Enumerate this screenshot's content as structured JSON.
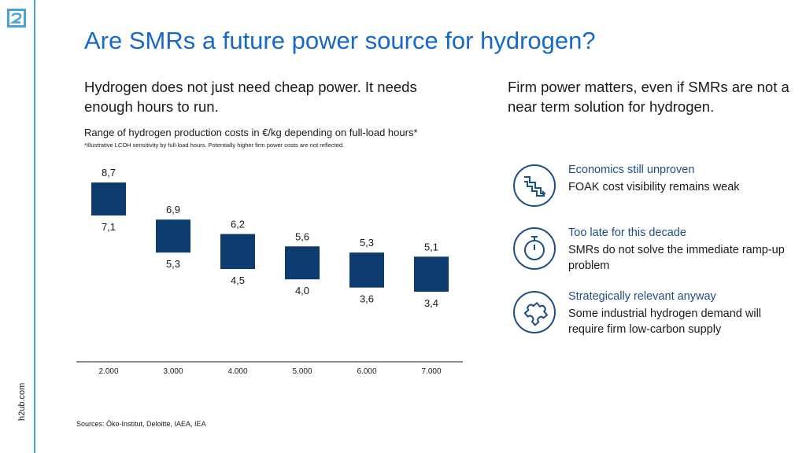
{
  "brand": {
    "logo_text": "h2",
    "site": "h2ub.com",
    "accent_color": "#4aa3d8",
    "title_color": "#1769c8",
    "bar_color": "#0d3b6e"
  },
  "title": "Are SMRs a future power source for hydrogen?",
  "left_subtitle": "Hydrogen does not just need cheap power. It needs enough hours to run.",
  "right_subtitle": "Firm power matters, even if SMRs are not a near term solution for hydrogen.",
  "chart_title": "Range of hydrogen production costs in €/kg depending on full-load hours*",
  "chart_note": "*Illustrative LCOH sensitivity by full-load hours. Potentially higher firm power costs are not reflected.",
  "sources": "Sources: Öko-Institut, Deloitte, IAEA, IEA",
  "chart_data": {
    "type": "bar",
    "subtype": "floating-range",
    "title": "Range of hydrogen production costs in €/kg depending on full-load hours*",
    "xlabel": "",
    "ylabel": "",
    "categories": [
      "2.000",
      "3.000",
      "4.000",
      "5.000",
      "6.000",
      "7.000"
    ],
    "series": [
      {
        "name": "high",
        "values": [
          8.7,
          6.9,
          6.2,
          5.6,
          5.3,
          5.1
        ],
        "labels": [
          "8,7",
          "6,9",
          "6,2",
          "5,6",
          "5,3",
          "5,1"
        ]
      },
      {
        "name": "low",
        "values": [
          7.1,
          5.3,
          4.5,
          4.0,
          3.6,
          3.4
        ],
        "labels": [
          "7,1",
          "5,3",
          "4,5",
          "4,0",
          "3,6",
          "3,4"
        ]
      }
    ],
    "ylim": [
      0,
      9.4
    ],
    "grid": false,
    "legend": "none"
  },
  "points": [
    {
      "icon": "declining-steps-icon",
      "heading": "Economics still unproven",
      "body": "FOAK cost visibility remains weak"
    },
    {
      "icon": "stopwatch-icon",
      "heading": "Too late for this decade",
      "body": "SMRs do not solve the immediate ramp-up problem"
    },
    {
      "icon": "puzzle-icon",
      "heading": "Strategically relevant anyway",
      "body": "Some industrial hydrogen demand will require firm low-carbon supply"
    }
  ]
}
